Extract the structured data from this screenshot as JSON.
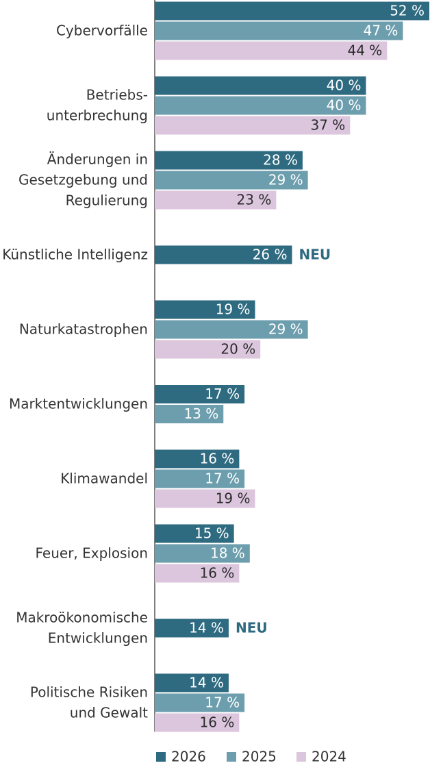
{
  "chart_data": {
    "type": "hbar",
    "categories": [
      [
        "Cybervorfälle"
      ],
      [
        "Betriebs-",
        "unterbrechung"
      ],
      [
        "Änderungen in",
        "Gesetzgebung und",
        "Regulierung"
      ],
      [
        "Künstliche Intelligenz"
      ],
      [
        "Naturkatastrophen"
      ],
      [
        "Marktentwicklungen"
      ],
      [
        "Klimawandel"
      ],
      [
        "Feuer, Explosion"
      ],
      [
        "Makroökonomische",
        "Entwicklungen"
      ],
      [
        "Politische Risiken",
        "und Gewalt"
      ]
    ],
    "series": [
      {
        "name": "2026",
        "color": "#2e6a80",
        "label_color": "#ffffff",
        "values": [
          52,
          40,
          28,
          26,
          19,
          17,
          16,
          15,
          14,
          14
        ],
        "value_labels": [
          "52 %",
          "40 %",
          "28 %",
          "26 %",
          "19 %",
          "17 %",
          "16 %",
          "15 %",
          "14 %",
          "14 %"
        ]
      },
      {
        "name": "2025",
        "color": "#6d9eae",
        "label_color": "#ffffff",
        "values": [
          47,
          40,
          29,
          null,
          29,
          13,
          17,
          18,
          null,
          17
        ],
        "value_labels": [
          "47 %",
          "40 %",
          "29 %",
          null,
          "29 %",
          "13 %",
          "17 %",
          "18 %",
          null,
          "17 %"
        ]
      },
      {
        "name": "2024",
        "color": "#dcc6de",
        "label_color": "#2b2b2b",
        "values": [
          44,
          37,
          23,
          null,
          20,
          null,
          19,
          16,
          null,
          16
        ],
        "value_labels": [
          "44 %",
          "37 %",
          "23 %",
          null,
          "20 %",
          null,
          "19 %",
          "16 %",
          null,
          "16 %"
        ]
      }
    ],
    "annotations": [
      {
        "category": 3,
        "text": "NEU"
      },
      {
        "category": 8,
        "text": "NEU"
      }
    ],
    "annotation_color": "#2e6a80"
  }
}
